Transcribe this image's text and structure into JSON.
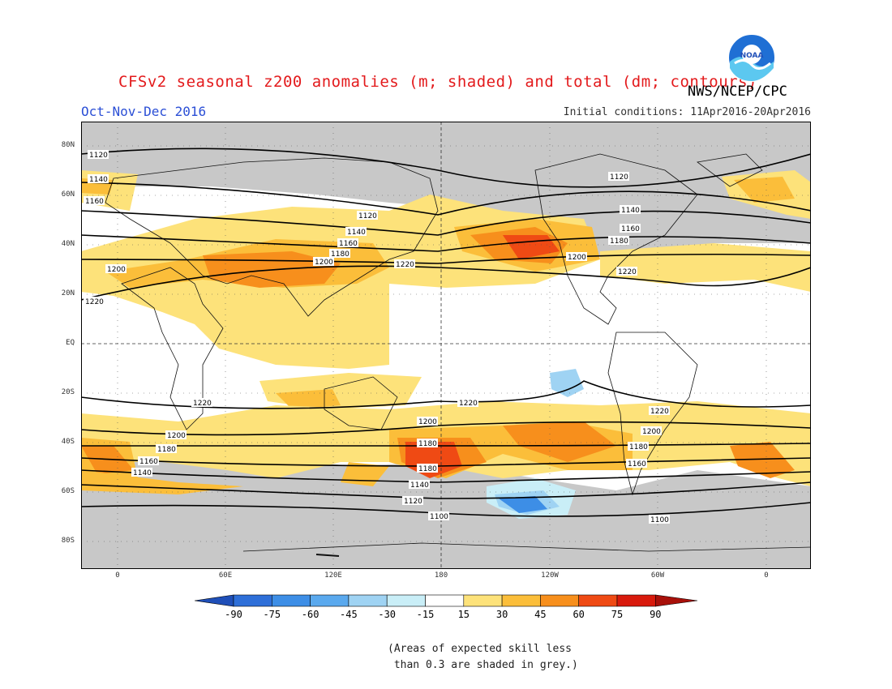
{
  "title": "CFSv2 seasonal z200 anomalies (m; shaded) and total (dm; contours)",
  "agency": "NWS/NCEP/CPC",
  "period": "Oct-Nov-Dec 2016",
  "initial_conditions": "Initial conditions: 11Apr2016-20Apr2016",
  "logo_text": "NOAA",
  "lat_labels": [
    "80N",
    "60N",
    "40N",
    "20N",
    "EQ",
    "20S",
    "40S",
    "60S",
    "80S"
  ],
  "lon_labels": [
    "0",
    "60E",
    "120E",
    "180",
    "120W",
    "60W",
    "0"
  ],
  "colorbar": {
    "levels": [
      "-90",
      "-75",
      "-60",
      "-45",
      "-30",
      "-15",
      "15",
      "30",
      "45",
      "60",
      "75",
      "90"
    ],
    "colors": [
      "#1f4fb8",
      "#2e6fd8",
      "#3d8ee6",
      "#5aa9ee",
      "#9fd3f3",
      "#c9eef7",
      "#ffffff",
      "#fde27a",
      "#fbbe3a",
      "#f78f1c",
      "#ef4a14",
      "#d81a0c",
      "#a8100a"
    ]
  },
  "contour_labels": [
    "1100",
    "1120",
    "1140",
    "1160",
    "1180",
    "1200",
    "1220"
  ],
  "note": "(Areas of expected skill less\n than 0.3 are shaded in grey.)",
  "colors": {
    "title": "#e31a1c",
    "period": "#2b4fd6",
    "skill_grey": "#c8c8c8"
  }
}
